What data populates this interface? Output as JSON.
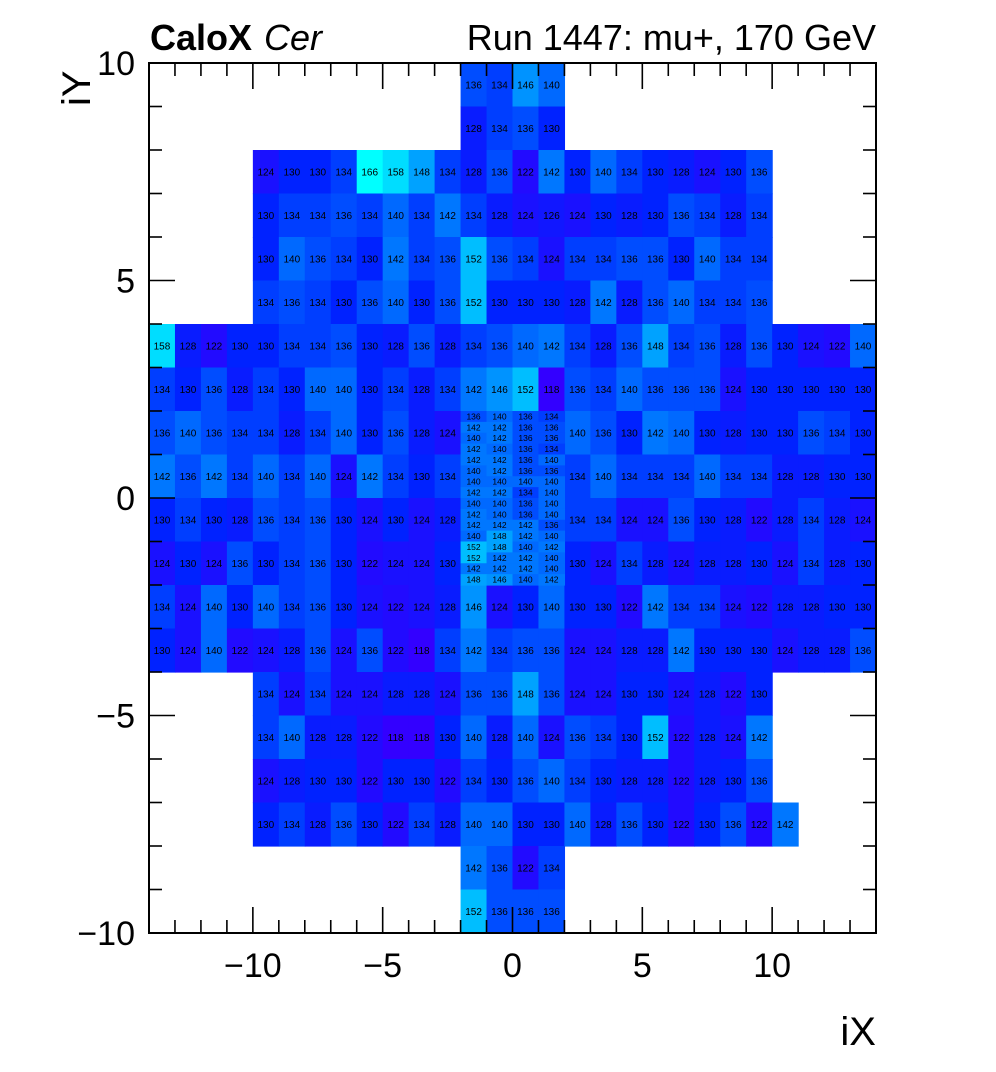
{
  "title": {
    "bold": "CaloX",
    "italic": "Cer",
    "run": "Run 1447: mu+, 170 GeV"
  },
  "chart_data": {
    "type": "heatmap",
    "xlabel": "iX",
    "ylabel": "iY",
    "xlim": [
      -14,
      14
    ],
    "ylim": [
      -10,
      10
    ],
    "x_ticks": [
      -10,
      -5,
      0,
      5,
      10
    ],
    "y_ticks": [
      -10,
      -5,
      0,
      5,
      10
    ],
    "x_tick_labels": [
      "−10",
      "−5",
      "0",
      "5",
      "10"
    ],
    "y_tick_labels": [
      "−10",
      "−5",
      "0",
      "5",
      "10"
    ],
    "color_scale": {
      "min": 118,
      "max": 166,
      "colors": [
        "#3300ff",
        "#0022ff",
        "#0077ff",
        "#00ccff",
        "#00ffff"
      ]
    },
    "value_format": "integer",
    "rows": [
      {
        "y": 9,
        "x0": -2,
        "values": [
          136,
          134,
          146,
          140
        ]
      },
      {
        "y": 8,
        "x0": -2,
        "values": [
          128,
          134,
          136,
          130
        ]
      },
      {
        "y": 7,
        "x0": -10,
        "values": [
          124,
          130,
          130,
          134,
          166,
          158,
          148,
          134,
          128,
          136,
          122,
          142,
          130,
          140,
          134,
          130,
          128,
          124,
          130,
          136
        ]
      },
      {
        "y": 6,
        "x0": -10,
        "values": [
          130,
          134,
          134,
          136,
          134,
          140,
          134,
          142,
          134,
          128,
          124,
          126,
          124,
          130,
          128,
          130,
          136,
          134,
          128,
          134
        ]
      },
      {
        "y": 5,
        "x0": -10,
        "values": [
          130,
          140,
          136,
          134,
          130,
          142,
          134,
          136,
          152,
          136,
          134,
          124,
          134,
          134,
          136,
          136,
          130,
          140,
          134,
          134
        ]
      },
      {
        "y": 4,
        "x0": -10,
        "values": [
          134,
          136,
          134,
          130,
          136,
          140,
          130,
          136,
          152,
          130,
          130,
          130,
          128,
          142,
          128,
          136,
          140,
          134,
          134,
          136
        ]
      },
      {
        "y": 3,
        "x0": -14,
        "values": [
          158,
          128,
          122,
          130,
          130,
          134,
          134,
          136,
          130,
          128,
          136,
          128,
          134,
          136,
          140,
          142,
          134,
          128,
          136,
          148,
          134,
          136,
          128,
          136,
          130,
          124,
          122,
          140
        ]
      },
      {
        "y": 2,
        "x0": -14,
        "values": [
          134,
          130,
          136,
          128,
          134,
          130,
          140,
          140,
          130,
          134,
          128,
          134,
          142,
          146,
          152,
          118,
          136,
          134,
          140,
          136,
          136,
          136,
          124,
          130,
          130,
          130,
          130,
          130
        ]
      },
      {
        "y": 1,
        "x0": -14,
        "values": [
          136,
          140,
          136,
          134,
          134,
          128,
          134,
          140,
          130,
          136,
          128,
          124,
          null,
          null,
          null,
          null,
          140,
          136,
          130,
          142,
          140,
          130,
          128,
          130,
          130,
          136,
          134,
          130
        ]
      },
      {
        "y": 0,
        "x0": -14,
        "values": [
          142,
          136,
          142,
          134,
          140,
          134,
          140,
          124,
          142,
          134,
          130,
          134,
          null,
          null,
          null,
          null,
          134,
          140,
          134,
          134,
          134,
          140,
          134,
          134,
          128,
          128,
          130,
          130
        ]
      },
      {
        "y": -1,
        "x0": -14,
        "values": [
          130,
          134,
          130,
          128,
          136,
          134,
          136,
          130,
          124,
          130,
          124,
          128,
          null,
          null,
          null,
          null,
          134,
          134,
          124,
          124,
          136,
          130,
          128,
          122,
          128,
          134,
          128,
          124
        ]
      },
      {
        "y": -2,
        "x0": -14,
        "values": [
          124,
          130,
          124,
          136,
          130,
          134,
          136,
          130,
          122,
          124,
          124,
          130,
          null,
          null,
          null,
          null,
          130,
          124,
          134,
          128,
          124,
          128,
          128,
          130,
          124,
          134,
          128,
          130
        ]
      },
      {
        "y": -3,
        "x0": -14,
        "values": [
          134,
          124,
          140,
          130,
          140,
          134,
          136,
          130,
          124,
          122,
          124,
          128,
          146,
          124,
          130,
          140,
          130,
          130,
          122,
          142,
          134,
          134,
          124,
          122,
          128,
          128,
          130,
          130
        ]
      },
      {
        "y": -4,
        "x0": -14,
        "values": [
          130,
          124,
          140,
          122,
          124,
          128,
          136,
          124,
          136,
          122,
          118,
          134,
          142,
          134,
          136,
          136,
          124,
          124,
          128,
          128,
          142,
          130,
          130,
          130,
          124,
          128,
          128,
          136
        ]
      },
      {
        "y": -5,
        "x0": -10,
        "values": [
          134,
          124,
          134,
          124,
          124,
          128,
          128,
          124,
          136,
          136,
          148,
          136,
          124,
          124,
          130,
          130,
          124,
          128,
          122,
          130
        ]
      },
      {
        "y": -6,
        "x0": -10,
        "values": [
          134,
          140,
          128,
          128,
          122,
          118,
          118,
          130,
          140,
          128,
          140,
          124,
          136,
          134,
          130,
          152,
          122,
          128,
          124,
          142
        ]
      },
      {
        "y": -7,
        "x0": -10,
        "values": [
          124,
          128,
          130,
          130,
          122,
          130,
          130,
          122,
          134,
          130,
          136,
          140,
          134,
          130,
          128,
          128,
          122,
          128,
          130,
          136
        ]
      },
      {
        "y": -8,
        "x0": -10,
        "values": [
          130,
          134,
          128,
          136,
          130,
          122,
          134,
          128,
          140,
          140,
          130,
          130,
          140,
          128,
          136,
          130,
          122,
          130,
          136,
          122,
          142
        ]
      },
      {
        "y": -9,
        "x0": -2,
        "values": [
          142,
          136,
          122,
          134
        ]
      },
      {
        "y": -10,
        "x0": -2,
        "values": [
          152,
          136,
          136,
          136
        ]
      }
    ],
    "fine_cells": {
      "x0": -2,
      "x1": 2,
      "y_top": 2,
      "y_bottom": -2,
      "rows_count": 16,
      "values": [
        [
          136,
          140,
          136,
          134
        ],
        [
          142,
          142,
          136,
          136
        ],
        [
          140,
          142,
          136,
          136
        ],
        [
          142,
          140,
          136,
          134
        ],
        [
          142,
          142,
          136,
          140
        ],
        [
          140,
          142,
          136,
          136
        ],
        [
          140,
          140,
          140,
          140
        ],
        [
          142,
          142,
          134,
          140
        ],
        [
          140,
          140,
          136,
          140
        ],
        [
          142,
          140,
          136,
          140
        ],
        [
          142,
          142,
          142,
          136
        ],
        [
          140,
          148,
          142,
          140
        ],
        [
          152,
          148,
          140,
          142
        ],
        [
          152,
          142,
          142,
          140
        ],
        [
          142,
          142,
          142,
          140
        ],
        [
          148,
          146,
          140,
          142
        ]
      ]
    }
  }
}
